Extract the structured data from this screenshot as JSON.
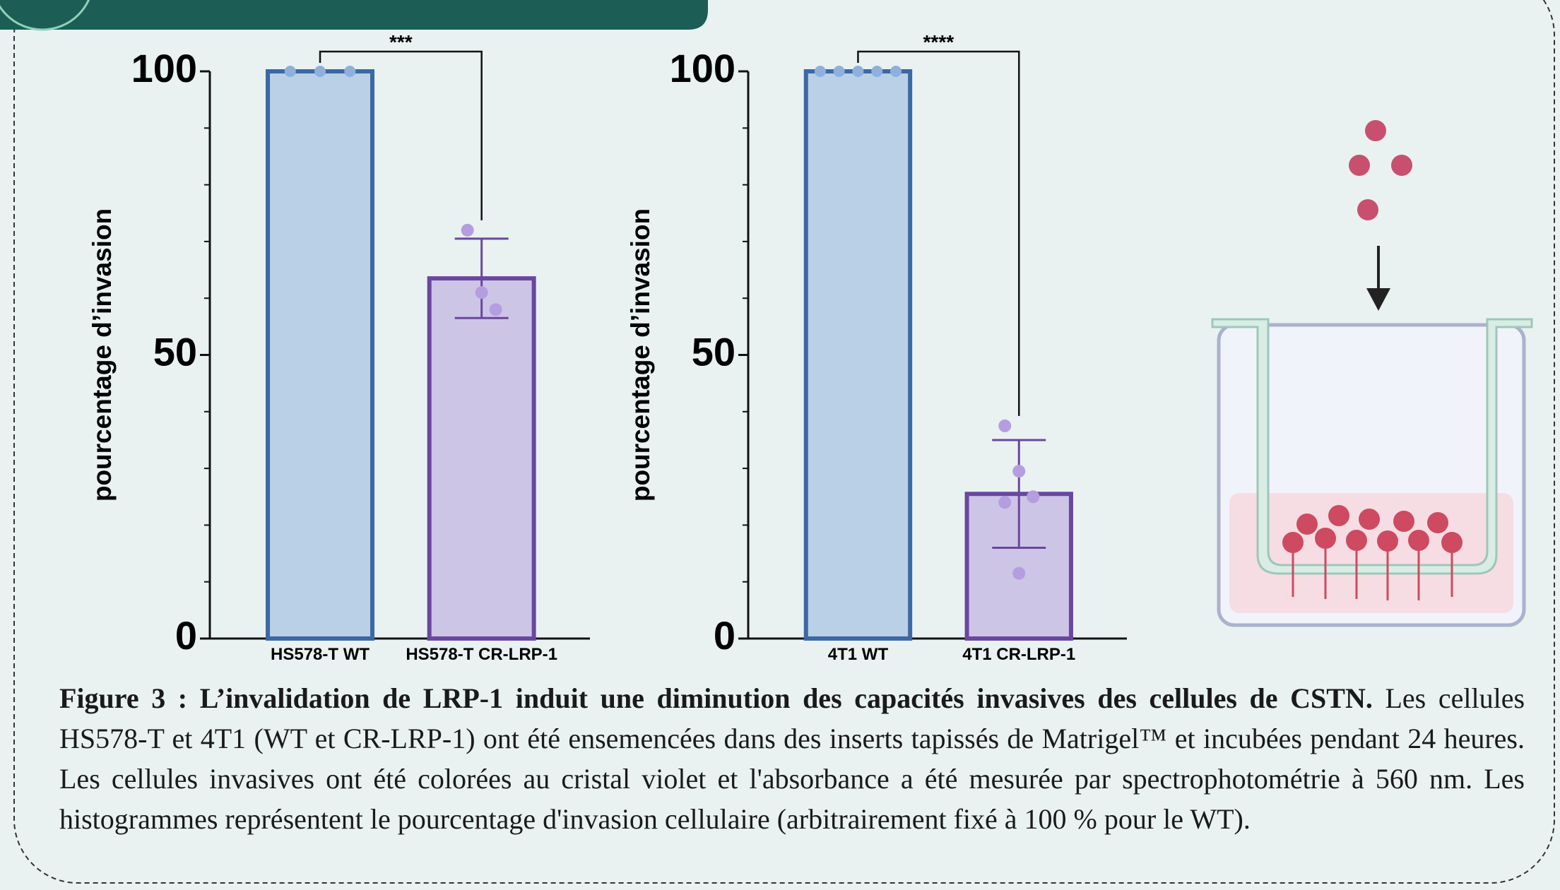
{
  "chart_data": [
    {
      "type": "bar",
      "ylabel": "pourcentage d’invasion",
      "categories": [
        "HS578-T WT",
        "HS578-T CR-LRP-1"
      ],
      "values": [
        100,
        63.5
      ],
      "errors": [
        0,
        7
      ],
      "points": [
        [
          100,
          100,
          100
        ],
        [
          72,
          61,
          58
        ]
      ],
      "colors": [
        "#b9d0e6",
        "#cdc5e6"
      ],
      "edge_colors": [
        "#3c68a3",
        "#6a479f"
      ],
      "point_colors": [
        "#8fb0dc",
        "#b49ee0"
      ],
      "significance": "***",
      "ylim": [
        0,
        100
      ],
      "yticks": [
        0,
        50,
        100
      ],
      "yminor": [
        10,
        20,
        30,
        40,
        60,
        70,
        80,
        90
      ],
      "grid": false
    },
    {
      "type": "bar",
      "ylabel": "pourcentage d’invasion",
      "categories": [
        "4T1 WT",
        "4T1 CR-LRP-1"
      ],
      "values": [
        100,
        25.5
      ],
      "errors": [
        0,
        9.5
      ],
      "points": [
        [
          100,
          100,
          100,
          100,
          100
        ],
        [
          37.5,
          29.5,
          25,
          24,
          11.5
        ]
      ],
      "colors": [
        "#b9d0e6",
        "#cdc5e6"
      ],
      "edge_colors": [
        "#3c68a3",
        "#6a479f"
      ],
      "point_colors": [
        "#8fb0dc",
        "#b49ee0"
      ],
      "significance": "****",
      "ylim": [
        0,
        100
      ],
      "yticks": [
        0,
        50,
        100
      ],
      "yminor": [
        10,
        20,
        30,
        40,
        60,
        70,
        80,
        90
      ],
      "grid": false
    }
  ],
  "caption": {
    "title": "Figure 3 : L’invalidation de LRP-1 induit une diminution des capacités invasives des cellules de CSTN.",
    "text": "Les cellules HS578-T et 4T1 (WT et CR-LRP-1) ont été ensemencées dans des inserts tapissés de Matrigel™ et incubées pendant 24 heures. Les cellules invasives ont été colorées au cristal violet et l'absorbance a été mesurée par spectrophotométrie à 560 nm. Les histogrammes représentent le pourcentage d'invasion cellulaire (arbitrairement fixé à 100 % pour le WT)."
  }
}
